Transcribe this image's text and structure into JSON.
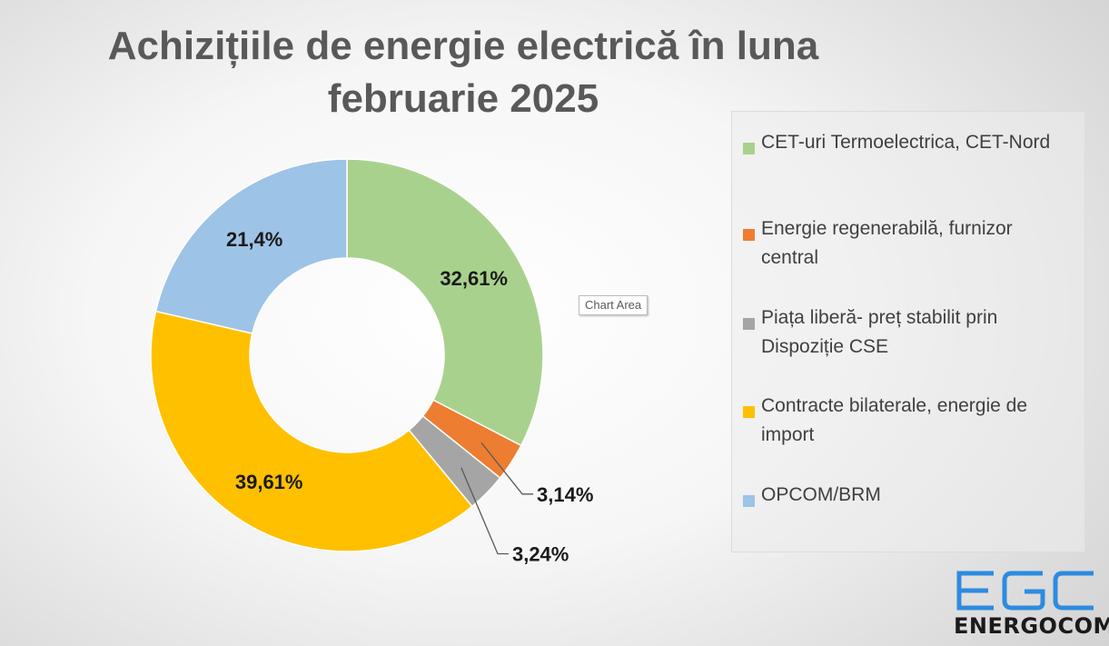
{
  "chart_data": {
    "type": "donut",
    "title": [
      "Achizițiile de energie electrică în luna",
      "februarie 2025"
    ],
    "series": [
      {
        "name": "CET-uri Termoelectrica, CET-Nord",
        "value": 32.61,
        "label": "32,61%",
        "color": "#A9D18E"
      },
      {
        "name": "Energie regenerabilă, furnizor central",
        "value": 3.14,
        "label": "3,14%",
        "color": "#ED7D31"
      },
      {
        "name": "Piața liberă- preț stabilit prin Dispoziție CSE",
        "value": 3.24,
        "label": "3,24%",
        "color": "#A5A5A5"
      },
      {
        "name": "Contracte bilaterale, energie de import",
        "value": 39.61,
        "label": "39,61%",
        "color": "#FFC000"
      },
      {
        "name": "OPCOM/BRM",
        "value": 21.4,
        "label": "21,4%",
        "color": "#9DC3E6"
      }
    ],
    "legend_position": "right"
  },
  "tooltip": "Chart Area",
  "logo": {
    "mark": "EGC",
    "name": "ENERGOCOM",
    "color": "#2E8BE0"
  }
}
